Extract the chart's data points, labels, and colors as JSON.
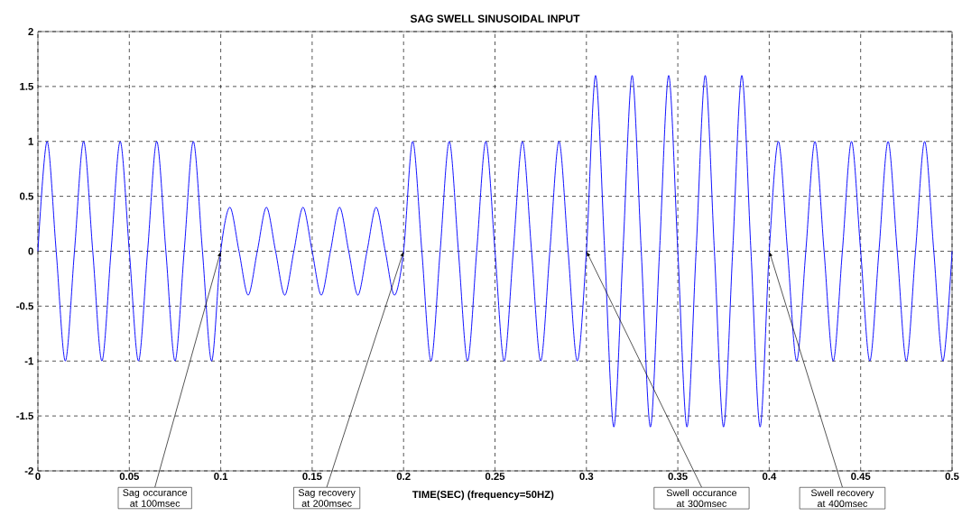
{
  "chart_data": {
    "type": "line",
    "title": "SAG SWELL  SINUSOIDAL INPUT",
    "xlabel": "TIME(SEC)   (frequency=50HZ)",
    "x": [
      0,
      0.005,
      0.01,
      0.015,
      0.02,
      0.025,
      0.03,
      0.035,
      0.04,
      0.045,
      0.05,
      0.055,
      0.06,
      0.065,
      0.07,
      0.075,
      0.08,
      0.085,
      0.09,
      0.095,
      0.1,
      0.105,
      0.11,
      0.115,
      0.12,
      0.125,
      0.13,
      0.135,
      0.14,
      0.145,
      0.15,
      0.155,
      0.16,
      0.165,
      0.17,
      0.175,
      0.18,
      0.185,
      0.19,
      0.195,
      0.2,
      0.205,
      0.21,
      0.215,
      0.22,
      0.225,
      0.23,
      0.235,
      0.24,
      0.245,
      0.25,
      0.255,
      0.26,
      0.265,
      0.27,
      0.275,
      0.28,
      0.285,
      0.29,
      0.295,
      0.3,
      0.305,
      0.31,
      0.315,
      0.32,
      0.325,
      0.33,
      0.335,
      0.34,
      0.345,
      0.35,
      0.355,
      0.36,
      0.365,
      0.37,
      0.375,
      0.38,
      0.385,
      0.39,
      0.395,
      0.4,
      0.405,
      0.41,
      0.415,
      0.42,
      0.425,
      0.43,
      0.435,
      0.44,
      0.445,
      0.45,
      0.455,
      0.46,
      0.465,
      0.47,
      0.475,
      0.48,
      0.485,
      0.49,
      0.495,
      0.5
    ],
    "series": [
      {
        "color": "#0000ff",
        "values": [
          0,
          1,
          0,
          -1,
          0,
          1,
          0,
          -1,
          0,
          1,
          0,
          -1,
          0,
          1,
          0,
          -1,
          0,
          1,
          0,
          -1,
          0,
          0.4,
          0,
          -0.4,
          0,
          0.4,
          0,
          -0.4,
          0,
          0.4,
          0,
          -0.4,
          0,
          0.4,
          0,
          -0.4,
          0,
          0.4,
          0,
          -0.4,
          0,
          1,
          0,
          -1,
          0,
          1,
          0,
          -1,
          0,
          1,
          0,
          -1,
          0,
          1,
          0,
          -1,
          0,
          1,
          0,
          -1,
          0,
          1.6,
          0,
          -1.6,
          0,
          1.6,
          0,
          -1.6,
          0,
          1.6,
          0,
          -1.6,
          0,
          1.6,
          0,
          -1.6,
          0,
          1.6,
          0,
          -1.6,
          0,
          1,
          0,
          -1,
          0,
          1,
          0,
          -1,
          0,
          1,
          0,
          -1,
          0,
          1,
          0,
          -1,
          0,
          1,
          0,
          -1,
          0
        ]
      }
    ],
    "xlim": [
      0,
      0.5
    ],
    "ylim": [
      -2,
      2
    ],
    "xticks": [
      0,
      0.05,
      0.1,
      0.15,
      0.2,
      0.25,
      0.3,
      0.35,
      0.4,
      0.45,
      0.5
    ],
    "yticks": [
      -2,
      -1.5,
      -1,
      -0.5,
      0,
      0.5,
      1,
      1.5,
      2
    ],
    "grid": true,
    "marker": "none",
    "line_style": "solid",
    "annotations": [
      {
        "text": "Sag occurance at 100msec",
        "x": 0.1,
        "y": 0
      },
      {
        "text": "Sag recovery at 200msec",
        "x": 0.2,
        "y": 0
      },
      {
        "text": "Swell occurance at 300msec",
        "x": 0.3,
        "y": 0
      },
      {
        "text": "Swell recovery at 400msec",
        "x": 0.4,
        "y": 0
      }
    ]
  }
}
